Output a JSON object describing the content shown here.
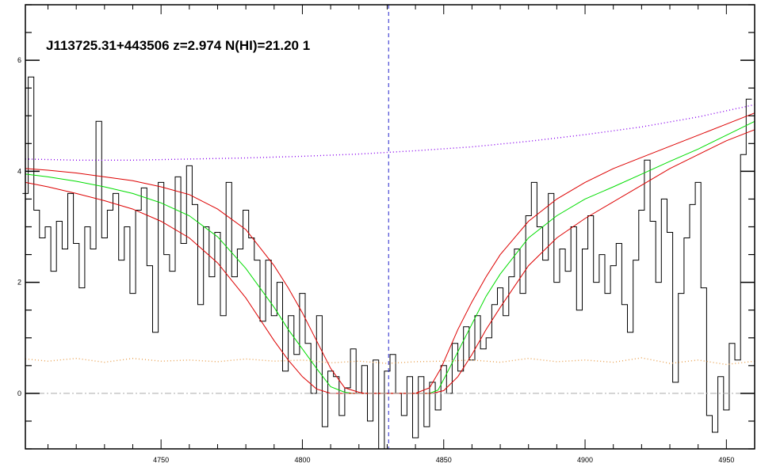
{
  "chart_data": {
    "type": "line",
    "title": "J113725.31+443506 z=2.974 N(HI)=21.20 1",
    "xlabel": "",
    "ylabel": "",
    "xlim": [
      4702,
      4960
    ],
    "ylim": [
      -1.0,
      7.0
    ],
    "x_ticks": [
      4750,
      4800,
      4850,
      4900,
      4950
    ],
    "y_ticks": [
      0,
      2,
      4,
      6
    ],
    "grid": false,
    "legend": "none",
    "absorption_center": 4830.5,
    "series": [
      {
        "role": "flux",
        "color": "#000000",
        "style": "histogram",
        "x": [
          4702,
          4704,
          4706,
          4708,
          4710,
          4712,
          4714,
          4716,
          4718,
          4720,
          4722,
          4724,
          4726,
          4728,
          4730,
          4732,
          4734,
          4736,
          4738,
          4740,
          4742,
          4744,
          4746,
          4748,
          4750,
          4752,
          4754,
          4756,
          4758,
          4760,
          4762,
          4764,
          4766,
          4768,
          4770,
          4772,
          4774,
          4776,
          4778,
          4780,
          4782,
          4784,
          4786,
          4788,
          4790,
          4792,
          4794,
          4796,
          4798,
          4800,
          4802,
          4804,
          4806,
          4808,
          4810,
          4812,
          4814,
          4816,
          4818,
          4820,
          4822,
          4824,
          4826,
          4828,
          4830,
          4832,
          4834,
          4836,
          4838,
          4840,
          4842,
          4844,
          4846,
          4848,
          4850,
          4852,
          4854,
          4856,
          4858,
          4860,
          4862,
          4864,
          4866,
          4868,
          4870,
          4872,
          4874,
          4876,
          4878,
          4880,
          4882,
          4884,
          4886,
          4888,
          4890,
          4892,
          4894,
          4896,
          4898,
          4900,
          4902,
          4904,
          4906,
          4908,
          4910,
          4912,
          4914,
          4916,
          4918,
          4920,
          4922,
          4924,
          4926,
          4928,
          4930,
          4932,
          4934,
          4936,
          4938,
          4940,
          4942,
          4944,
          4946,
          4948,
          4950,
          4952,
          4954,
          4956,
          4958
        ],
        "values": [
          3.6,
          5.7,
          3.3,
          2.8,
          3.0,
          2.2,
          3.1,
          2.6,
          3.6,
          2.7,
          1.9,
          3.0,
          2.6,
          4.9,
          2.8,
          3.3,
          3.6,
          2.4,
          3.0,
          1.8,
          3.3,
          3.7,
          2.3,
          1.1,
          3.8,
          2.5,
          2.2,
          3.9,
          2.7,
          4.1,
          3.4,
          1.6,
          3.0,
          2.1,
          2.9,
          1.4,
          3.8,
          2.1,
          2.6,
          3.3,
          2.8,
          2.4,
          1.3,
          2.4,
          1.4,
          2.0,
          0.4,
          1.4,
          0.7,
          1.8,
          0.9,
          0.0,
          1.4,
          -0.6,
          0.4,
          0.3,
          -0.4,
          0.1,
          0.8,
          0.0,
          0.5,
          -0.5,
          0.6,
          -1.0,
          0.4,
          0.7,
          0.0,
          -0.4,
          0.3,
          -0.8,
          0.3,
          -0.6,
          0.2,
          -0.3,
          0.5,
          0.0,
          0.9,
          0.4,
          1.2,
          0.6,
          1.4,
          0.8,
          1.0,
          1.6,
          1.9,
          1.4,
          2.1,
          2.6,
          1.8,
          3.2,
          3.8,
          3.0,
          2.4,
          3.6,
          2.0,
          2.6,
          2.2,
          3.0,
          1.5,
          2.6,
          3.2,
          2.0,
          2.5,
          1.8,
          2.3,
          2.7,
          1.6,
          1.1,
          2.4,
          3.3,
          4.2,
          3.1,
          2.0,
          3.5,
          2.9,
          0.2,
          1.8,
          2.8,
          3.4,
          3.8,
          1.9,
          -0.4,
          -0.7,
          0.3,
          -0.3,
          0.9,
          0.6,
          4.3,
          5.3
        ]
      },
      {
        "role": "fit",
        "color": "#00dd00",
        "style": "line",
        "x": [
          4702,
          4710,
          4720,
          4730,
          4740,
          4750,
          4760,
          4770,
          4780,
          4790,
          4795,
          4800,
          4805,
          4810,
          4815,
          4818,
          4820,
          4830,
          4840,
          4845,
          4848,
          4851,
          4855,
          4860,
          4865,
          4870,
          4880,
          4890,
          4900,
          4910,
          4920,
          4930,
          4940,
          4950,
          4960
        ],
        "values": [
          3.95,
          3.9,
          3.82,
          3.72,
          3.6,
          3.43,
          3.2,
          2.82,
          2.25,
          1.55,
          1.15,
          0.8,
          0.45,
          0.12,
          0.02,
          0.0,
          0.0,
          0.0,
          0.0,
          0.0,
          0.06,
          0.35,
          0.75,
          1.25,
          1.75,
          2.15,
          2.8,
          3.2,
          3.5,
          3.72,
          3.95,
          4.18,
          4.4,
          4.65,
          4.9
        ]
      },
      {
        "role": "fit-upper",
        "color": "#dd0000",
        "style": "line",
        "x": [
          4702,
          4710,
          4720,
          4730,
          4740,
          4750,
          4760,
          4770,
          4780,
          4790,
          4795,
          4800,
          4805,
          4810,
          4815,
          4820,
          4822,
          4830,
          4840,
          4845,
          4849,
          4852,
          4855,
          4860,
          4865,
          4870,
          4880,
          4890,
          4900,
          4910,
          4920,
          4930,
          4940,
          4950,
          4960
        ],
        "values": [
          4.05,
          4.02,
          3.97,
          3.9,
          3.83,
          3.72,
          3.58,
          3.32,
          2.95,
          2.3,
          1.9,
          1.45,
          0.95,
          0.45,
          0.1,
          0.02,
          0.0,
          0.0,
          0.0,
          0.1,
          0.45,
          0.8,
          1.15,
          1.65,
          2.1,
          2.5,
          3.1,
          3.5,
          3.8,
          4.05,
          4.25,
          4.45,
          4.65,
          4.85,
          5.05
        ]
      },
      {
        "role": "fit-lower",
        "color": "#dd0000",
        "style": "line",
        "x": [
          4702,
          4710,
          4720,
          4730,
          4740,
          4750,
          4760,
          4770,
          4780,
          4790,
          4795,
          4800,
          4805,
          4810,
          4812,
          4820,
          4830,
          4840,
          4846,
          4850,
          4855,
          4860,
          4865,
          4870,
          4880,
          4890,
          4900,
          4910,
          4920,
          4930,
          4940,
          4950,
          4960
        ],
        "values": [
          3.8,
          3.72,
          3.6,
          3.47,
          3.32,
          3.1,
          2.8,
          2.35,
          1.72,
          0.95,
          0.6,
          0.3,
          0.08,
          0.0,
          0.0,
          0.0,
          0.0,
          0.0,
          0.0,
          0.05,
          0.3,
          0.7,
          1.15,
          1.55,
          2.3,
          2.8,
          3.15,
          3.45,
          3.75,
          4.05,
          4.3,
          4.55,
          4.75
        ]
      },
      {
        "role": "continuum",
        "color": "#8800ee",
        "style": "dotted",
        "x": [
          4702,
          4720,
          4740,
          4760,
          4780,
          4800,
          4820,
          4840,
          4860,
          4880,
          4900,
          4920,
          4940,
          4960
        ],
        "values": [
          4.22,
          4.2,
          4.2,
          4.22,
          4.24,
          4.27,
          4.31,
          4.37,
          4.44,
          4.54,
          4.66,
          4.8,
          4.98,
          5.2
        ]
      },
      {
        "role": "error",
        "color": "#e8a050",
        "style": "dotted",
        "x": [
          4702,
          4710,
          4720,
          4730,
          4740,
          4750,
          4760,
          4770,
          4780,
          4790,
          4800,
          4810,
          4820,
          4830,
          4840,
          4850,
          4860,
          4870,
          4880,
          4890,
          4900,
          4910,
          4920,
          4930,
          4940,
          4950,
          4960
        ],
        "values": [
          0.62,
          0.58,
          0.63,
          0.56,
          0.63,
          0.58,
          0.6,
          0.57,
          0.62,
          0.58,
          0.6,
          0.55,
          0.58,
          0.54,
          0.57,
          0.58,
          0.6,
          0.56,
          0.63,
          0.57,
          0.6,
          0.56,
          0.64,
          0.54,
          0.6,
          0.52,
          0.58
        ]
      },
      {
        "role": "zero",
        "color": "#aaaaaa",
        "style": "dashdot",
        "x": [
          4702,
          4960
        ],
        "values": [
          0,
          0
        ]
      }
    ]
  }
}
